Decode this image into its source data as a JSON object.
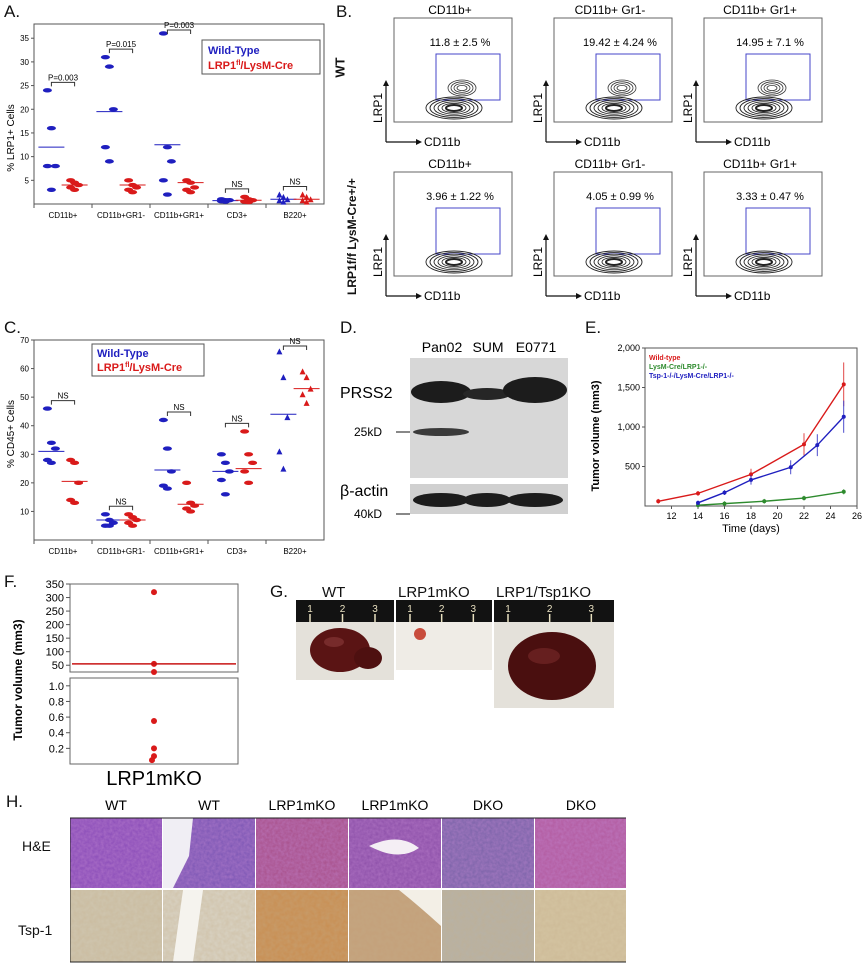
{
  "panels": {
    "A": {
      "letter": "A.",
      "ylabel": "% LRP1+ Cells",
      "legend": {
        "wt": "Wild-Type",
        "ko": "LRP1fl/LysM-Cre"
      },
      "legend_ko_parts": [
        "LRP1",
        "fl",
        "/LysM-Cre"
      ],
      "groups": [
        "CD11b+",
        "CD11b+GR1-",
        "CD11b+GR1+",
        "CD3+",
        "B220+"
      ],
      "pvals": [
        "P=0.003",
        "P=0.015",
        "P=0.003",
        "NS",
        "NS"
      ],
      "yticks": [
        "5",
        "10",
        "15",
        "20",
        "25",
        "30",
        "35"
      ],
      "colors": {
        "wt": "#1f1fbf",
        "ko": "#d91a1a"
      }
    },
    "B": {
      "letter": "B.",
      "row_wt": "WT",
      "row_ko": "LRP1f/f LysM-Cre+/+",
      "cols": [
        "CD11b+",
        "CD11b+ Gr1-",
        "CD11b+ Gr1+"
      ],
      "wt_vals": [
        "11.8 ± 2.5 %",
        "19.42 ± 4.24 %",
        "14.95 ± 7.1 %"
      ],
      "ko_vals": [
        "3.96 ± 1.22 %",
        "4.05 ± 0.99 %",
        "3.33 ± 0.47 %"
      ],
      "xaxis": "CD11b",
      "yaxis": "LRP1"
    },
    "C": {
      "letter": "C.",
      "ylabel": "% CD45+ Cells",
      "legend": {
        "wt": "Wild-Type",
        "ko": "LRP1fl/LysM-Cre"
      },
      "legend_ko_parts": [
        "LRP1",
        "fl",
        "/LysM-Cre"
      ],
      "groups": [
        "CD11b+",
        "CD11b+GR1-",
        "CD11b+GR1+",
        "CD3+",
        "B220+"
      ],
      "pvals": [
        "NS",
        "NS",
        "NS",
        "NS",
        "NS"
      ],
      "yticks": [
        "10",
        "20",
        "30",
        "40",
        "50",
        "60",
        "70"
      ]
    },
    "D": {
      "letter": "D.",
      "lanes": [
        "Pan02",
        "SUM",
        "E0771"
      ],
      "band1": "PRSS2",
      "marker1": "25kD",
      "band2": "β-actin",
      "marker2": "40kD"
    },
    "E": {
      "letter": "E.",
      "ylabel": "Tumor volume (mm3)",
      "xlabel": "Time (days)",
      "legend": [
        "Wild-type",
        "LysM-Cre/LRP1-/-",
        "Tsp-1-/-/LysM-Cre/LRP1-/-"
      ],
      "colors": [
        "#d91a1a",
        "#2e8b2e",
        "#1f1fbf"
      ]
    },
    "F": {
      "letter": "F.",
      "ylabel": "Tumor volume (mm3)",
      "xlabel": "LRP1mKO",
      "yticks_top": [
        "50",
        "100",
        "150",
        "200",
        "250",
        "300",
        "350"
      ],
      "yticks_bottom": [
        "0.2",
        "0.4",
        "0.6",
        "0.8",
        "1.0"
      ]
    },
    "G": {
      "letter": "G.",
      "labels": [
        "WT",
        "LRP1mKO",
        "LRP1/Tsp1KO"
      ],
      "ruler": [
        "1",
        "2",
        "3"
      ]
    },
    "H": {
      "letter": "H.",
      "cols": [
        "WT",
        "WT",
        "LRP1mKO",
        "LRP1mKO",
        "DKO",
        "DKO"
      ],
      "rows": [
        "H&E",
        "Tsp-1"
      ]
    }
  },
  "chart_data": [
    {
      "type": "scatter",
      "panel": "A",
      "ylabel": "% LRP1+ Cells",
      "categories": [
        "CD11b+",
        "CD11b+GR1-",
        "CD11b+GR1+",
        "CD3+",
        "B220+"
      ],
      "series": [
        {
          "name": "Wild-Type",
          "values": [
            [
              24,
              16,
              8,
              8,
              3
            ],
            [
              31,
              29,
              20,
              12,
              9
            ],
            [
              36,
              12,
              9,
              5,
              2
            ],
            [
              1,
              0.8,
              0.8,
              0.6,
              0.5
            ],
            [
              2,
              1.5,
              1,
              0.8,
              0.5
            ]
          ],
          "means": [
            12,
            19.5,
            12.5,
            0.7,
            1
          ]
        },
        {
          "name": "LRP1fl/LysM-Cre",
          "values": [
            [
              5,
              4.5,
              4,
              3.5,
              3
            ],
            [
              5,
              4,
              3.5,
              3,
              2.5
            ],
            [
              5,
              4.5,
              3.5,
              3,
              2.5
            ],
            [
              1.5,
              1,
              0.8,
              0.5,
              0.4
            ],
            [
              2,
              1.5,
              1,
              0.8,
              0.5
            ]
          ],
          "means": [
            4,
            4,
            4.5,
            0.8,
            1
          ]
        }
      ],
      "ylim": [
        0,
        38
      ]
    },
    {
      "type": "scatter",
      "panel": "C",
      "ylabel": "% CD45+ Cells",
      "categories": [
        "CD11b+",
        "CD11b+GR1-",
        "CD11b+GR1+",
        "CD3+",
        "B220+"
      ],
      "series": [
        {
          "name": "Wild-Type",
          "values": [
            [
              46,
              34,
              32,
              28,
              27
            ],
            [
              9,
              7,
              6,
              5,
              5
            ],
            [
              42,
              32,
              24,
              19,
              18
            ],
            [
              30,
              27,
              24,
              21,
              16
            ],
            [
              66,
              57,
              43,
              31,
              25
            ]
          ],
          "means": [
            31,
            7,
            24.5,
            24,
            44
          ]
        },
        {
          "name": "LRP1fl/LysM-Cre",
          "values": [
            [
              28,
              27,
              20,
              14,
              13
            ],
            [
              9,
              8,
              7,
              6,
              5
            ],
            [
              20,
              13,
              12,
              11,
              10
            ],
            [
              38,
              30,
              27,
              24,
              20
            ],
            [
              59,
              57,
              53,
              51,
              48
            ]
          ],
          "means": [
            20.5,
            7,
            12.5,
            25,
            53
          ]
        }
      ],
      "ylim": [
        0,
        70
      ]
    },
    {
      "type": "line",
      "panel": "E",
      "ylabel": "Tumor volume (mm3)",
      "xlabel": "Time (days)",
      "xlim": [
        10,
        26
      ],
      "ylim": [
        0,
        2000
      ],
      "xticks": [
        12,
        14,
        16,
        18,
        20,
        22,
        24,
        26
      ],
      "yticks": [
        "500",
        "1,000",
        "1,500",
        "2,000"
      ],
      "series": [
        {
          "name": "Wild-type",
          "x": [
            11,
            14,
            18,
            22,
            25
          ],
          "y": [
            60,
            160,
            400,
            780,
            1540
          ]
        },
        {
          "name": "LysM-Cre/LRP1-/-",
          "x": [
            14,
            16,
            19,
            22,
            25
          ],
          "y": [
            10,
            30,
            60,
            100,
            180
          ]
        },
        {
          "name": "Tsp-1-/-/LysM-Cre/LRP1-/-",
          "x": [
            14,
            16,
            18,
            21,
            23,
            25
          ],
          "y": [
            40,
            170,
            330,
            490,
            770,
            1130
          ]
        }
      ]
    },
    {
      "type": "scatter",
      "panel": "F",
      "ylabel": "Tumor volume (mm3)",
      "categories": [
        "LRP1mKO"
      ],
      "values": [
        320,
        55,
        25,
        0.55,
        0.2,
        0.1,
        0.05
      ],
      "mean": 55
    }
  ]
}
